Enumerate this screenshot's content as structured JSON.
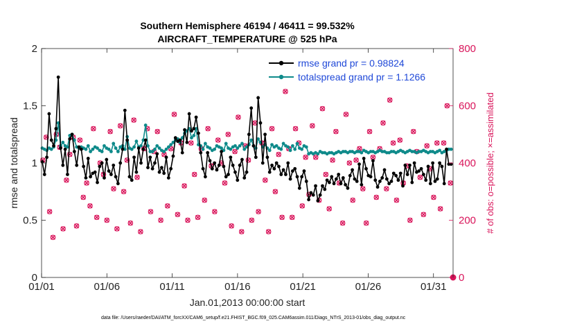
{
  "chart_data": {
    "type": "line",
    "title_line1": "Southern Hemisphere 46194 / 46411 = 99.532%",
    "title_line2": "AIRCRAFT_TEMPERATURE @ 525 hPa",
    "xlabel": "Jan.01,2013 00:00:00 start",
    "ylabel_left": "rmse and totalspread",
    "ylabel_right": "# of obs: o=possible; ×=assimilated",
    "xlim": [
      0,
      31.5
    ],
    "ylim_left": [
      0,
      2
    ],
    "ylim_right": [
      0,
      800
    ],
    "x_ticks": [
      {
        "value": 0,
        "label": "01/01"
      },
      {
        "value": 5,
        "label": "01/06"
      },
      {
        "value": 10,
        "label": "01/11"
      },
      {
        "value": 15,
        "label": "01/16"
      },
      {
        "value": 20,
        "label": "01/21"
      },
      {
        "value": 25,
        "label": "01/26"
      },
      {
        "value": 30,
        "label": "01/31"
      }
    ],
    "y_ticks_left": [
      {
        "value": 0,
        "label": "0"
      },
      {
        "value": 0.5,
        "label": "0.5"
      },
      {
        "value": 1,
        "label": "1"
      },
      {
        "value": 1.5,
        "label": "1.5"
      },
      {
        "value": 2,
        "label": "2"
      }
    ],
    "y_ticks_right": [
      {
        "value": 0,
        "label": "0"
      },
      {
        "value": 200,
        "label": "200"
      },
      {
        "value": 400,
        "label": "400"
      },
      {
        "value": 600,
        "label": "600"
      },
      {
        "value": 800,
        "label": "800"
      }
    ],
    "legend": [
      {
        "name": "rmse grand pr = 0.98824",
        "color": "#000000"
      },
      {
        "name": "totalspread grand pr = 1.1266",
        "color": "#0e8a8a"
      }
    ],
    "series": [
      {
        "name": "rmse",
        "color": "#000000",
        "values": [
          1.01,
          0.9,
          1.05,
          1.43,
          1.2,
          1.15,
          1.3,
          1.75,
          1.13,
          0.98,
          1.12,
          0.9,
          1.21,
          1.25,
          1.1,
          0.98,
          1.14,
          1.12,
          0.97,
          0.87,
          1.04,
          0.88,
          0.91,
          0.92,
          0.83,
          0.97,
          1.0,
          0.87,
          1.03,
          0.93,
          0.9,
          0.98,
          0.88,
          0.82,
          1.0,
          1.12,
          1.46,
          1.2,
          0.88,
          0.85,
          1.05,
          0.92,
          1.13,
          1.0,
          1.12,
          1.2,
          0.96,
          1.05,
          0.95,
          1.0,
          1.08,
          0.92,
          0.96,
          0.91,
          1.05,
          0.87,
          0.95,
          1.06,
          1.22,
          1.19,
          1.2,
          1.09,
          1.29,
          1.18,
          1.43,
          1.28,
          1.3,
          1.4,
          1.26,
          1.09,
          0.95,
          0.88,
          1.09,
          1.02,
          0.95,
          1.0,
          0.94,
          0.98,
          1.1,
          0.97,
          0.88,
          0.9,
          1.05,
          0.98,
          0.92,
          0.85,
          0.98,
          1.03,
          0.87,
          0.92,
          1.25,
          1.48,
          1.15,
          1.05,
          1.57,
          1.35,
          1.0,
          1.25,
          1.05,
          0.92,
          0.98,
          0.95,
          1.0,
          0.97,
          0.9,
          0.94,
          0.9,
          1.0,
          0.86,
          0.93,
          0.95,
          0.88,
          0.78,
          0.88,
          0.93,
          0.84,
          0.68,
          0.74,
          0.72,
          0.8,
          0.67,
          0.72,
          0.8,
          0.77,
          0.85,
          0.83,
          0.88,
          0.82,
          0.86,
          0.9,
          0.82,
          0.87,
          0.81,
          0.78,
          0.89,
          0.94,
          0.86,
          0.84,
          0.99,
          0.81,
          1.04,
          0.95,
          0.89,
          0.88,
          1.02,
          0.85,
          0.79,
          0.84,
          0.87,
          0.94,
          0.86,
          0.82,
          0.84,
          0.91,
          0.89,
          0.85,
          0.91,
          0.8,
          0.98,
          0.9,
          0.98,
          0.83,
          1.0,
          0.92,
          0.93,
          0.95,
          0.9,
          0.85,
          0.97,
          0.82,
          1.0,
          0.84,
          0.86,
          1.0,
          0.97,
          0.82,
          1.12,
          0.99,
          0.99
        ]
      },
      {
        "name": "totalspread",
        "color": "#0e8a8a",
        "values": [
          1.13,
          1.12,
          1.11,
          1.13,
          1.12,
          1.14,
          1.2,
          1.35,
          1.15,
          1.18,
          1.15,
          1.14,
          1.24,
          1.25,
          1.2,
          1.14,
          1.13,
          1.14,
          1.13,
          1.12,
          1.15,
          1.1,
          1.12,
          1.14,
          1.13,
          1.11,
          1.1,
          1.15,
          1.13,
          1.12,
          1.1,
          1.17,
          1.13,
          1.1,
          1.14,
          1.15,
          1.12,
          1.23,
          1.13,
          1.12,
          1.14,
          1.19,
          1.14,
          1.15,
          1.2,
          1.33,
          1.15,
          1.1,
          1.1,
          1.12,
          1.15,
          1.13,
          1.11,
          1.1,
          1.12,
          1.14,
          1.16,
          1.18,
          1.2,
          1.21,
          1.18,
          1.22,
          1.26,
          1.28,
          1.3,
          1.22,
          1.24,
          1.3,
          1.16,
          1.15,
          1.12,
          1.17,
          1.14,
          1.13,
          1.11,
          1.12,
          1.15,
          1.14,
          1.13,
          1.11,
          1.17,
          1.13,
          1.12,
          1.14,
          1.15,
          1.13,
          1.15,
          1.17,
          1.12,
          1.14,
          1.16,
          1.2,
          1.15,
          1.13,
          1.21,
          1.18,
          1.14,
          1.16,
          1.13,
          1.11,
          1.16,
          1.14,
          1.15,
          1.13,
          1.12,
          1.17,
          1.15,
          1.14,
          1.11,
          1.15,
          1.12,
          1.17,
          1.13,
          1.12,
          1.15,
          1.14,
          1.08,
          1.09,
          1.08,
          1.09,
          1.08,
          1.1,
          1.09,
          1.09,
          1.08,
          1.09,
          1.09,
          1.08,
          1.09,
          1.1,
          1.09,
          1.1,
          1.1,
          1.09,
          1.1,
          1.1,
          1.09,
          1.1,
          1.1,
          1.09,
          1.11,
          1.1,
          1.09,
          1.1,
          1.1,
          1.09,
          1.1,
          1.11,
          1.1,
          1.1,
          1.09,
          1.09,
          1.1,
          1.1,
          1.09,
          1.1,
          1.11,
          1.1,
          1.09,
          1.1,
          1.11,
          1.1,
          1.1,
          1.09,
          1.1,
          1.1,
          1.11,
          1.1,
          1.09,
          1.1,
          1.1,
          1.09,
          1.1,
          1.11,
          1.09,
          1.1,
          1.11,
          1.12,
          1.12
        ]
      },
      {
        "name": "obs_count",
        "color": "#d9145a",
        "axis": "right",
        "values": [
          410,
          490,
          230,
          140,
          500,
          455,
          170,
          340,
          430,
          490,
          180,
          480,
          280,
          330,
          250,
          520,
          210,
          400,
          360,
          200,
          510,
          310,
          170,
          530,
          300,
          410,
          190,
          550,
          350,
          160,
          450,
          520,
          230,
          440,
          510,
          200,
          430,
          250,
          450,
          570,
          220,
          470,
          320,
          200,
          470,
          360,
          210,
          450,
          270,
          520,
          390,
          230,
          480,
          400,
          330,
          500,
          180,
          440,
          560,
          160,
          460,
          410,
          200,
          540,
          230,
          470,
          340,
          160,
          520,
          300,
          430,
          210,
          650,
          450,
          210,
          520,
          470,
          250,
          420,
          290,
          530,
          420,
          270,
          590,
          360,
          240,
          410,
          510,
          330,
          190,
          570,
          400,
          270,
          410,
          450,
          310,
          190,
          510,
          420,
          280,
          450,
          540,
          310,
          620,
          470,
          270,
          480,
          330,
          390,
          200,
          510,
          440,
          350,
          220,
          460,
          380,
          280,
          470,
          240,
          470,
          600,
          330
        ]
      }
    ],
    "footnote": "data file: /Users/raeder/DAI/ATM_forcXX/CAM6_setup/f.e21.FHIST_BGC.f09_025.CAM6assim.011/Diags_NTrS_2013-01/obs_diag_output.nc"
  }
}
